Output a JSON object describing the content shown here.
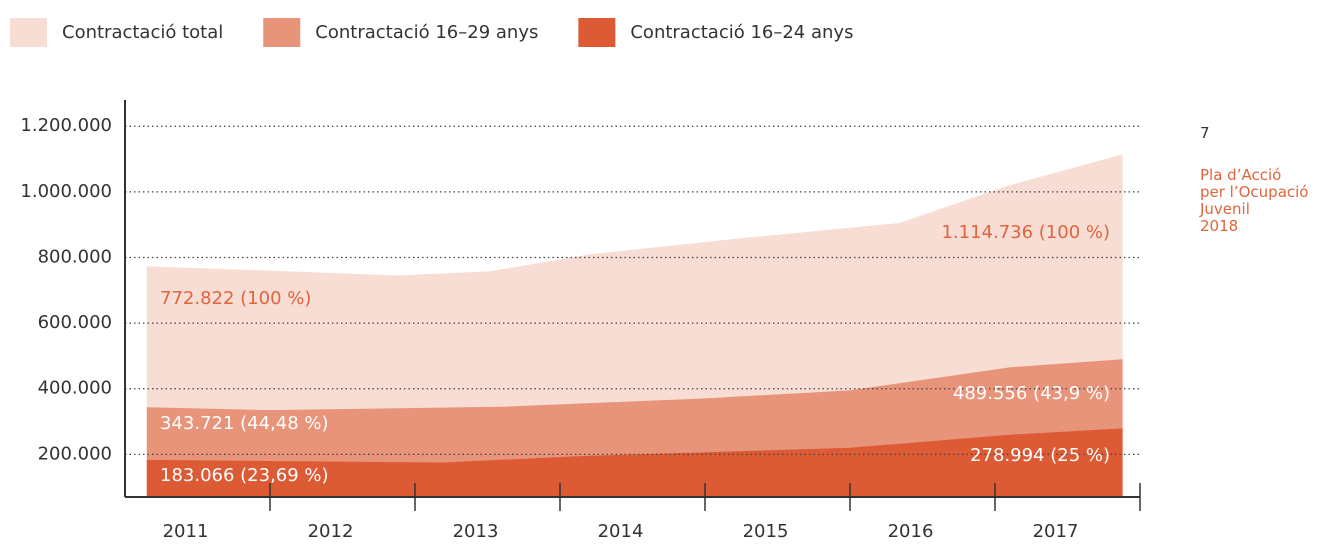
{
  "chart_data": {
    "type": "area",
    "series": [
      {
        "name": "Contractació total",
        "color": "#f8ddd4",
        "x": [
          2010.65,
          2011.5,
          2012.38,
          2013.02,
          2013.71,
          2014.78,
          2015.84,
          2016.6,
          2017.38
        ],
        "values": [
          772822,
          760000,
          745000,
          758000,
          810000,
          860000,
          905000,
          1020000,
          1114736
        ]
      },
      {
        "name": "Contractació 16–29 anys",
        "color": "#e8947b",
        "x": [
          2010.65,
          2011.5,
          2013.09,
          2014.47,
          2015.5,
          2016.6,
          2017.38
        ],
        "values": [
          343721,
          335000,
          345000,
          370000,
          395000,
          465000,
          489556
        ]
      },
      {
        "name": "Contractació 16–24 anys",
        "color": "#dc5b35",
        "x": [
          2010.65,
          2012.69,
          2013.66,
          2015.5,
          2016.6,
          2017.38
        ],
        "values": [
          183066,
          175000,
          195000,
          220000,
          260000,
          278994
        ]
      }
    ],
    "xlim": [
      2010.5,
      2017.5
    ],
    "xticks": [
      2011,
      2012,
      2013,
      2014,
      2015,
      2016,
      2017
    ],
    "ylim": [
      70000,
      1280000
    ],
    "yticks": [
      {
        "value": 200000,
        "label": "200.000"
      },
      {
        "value": 400000,
        "label": "400.000"
      },
      {
        "value": 600000,
        "label": "600.000"
      },
      {
        "value": 800000,
        "label": "800.000"
      },
      {
        "value": 1000000,
        "label": "1.000.000"
      },
      {
        "value": 1200000,
        "label": "1.200.000"
      }
    ],
    "grid": true,
    "legend": "top",
    "annotations": [
      "772.822 (100 %)",
      "343.721 (44,48 %)",
      "183.066 (23,69 %)",
      "1.114.736 (100 %)",
      "489.556 (43,9 %)",
      "278.994 (25 %)"
    ],
    "side_note": {
      "page": "7",
      "lines": [
        "Pla d’Acció",
        "per l’Ocupació",
        "Juvenil",
        "2018"
      ]
    }
  }
}
